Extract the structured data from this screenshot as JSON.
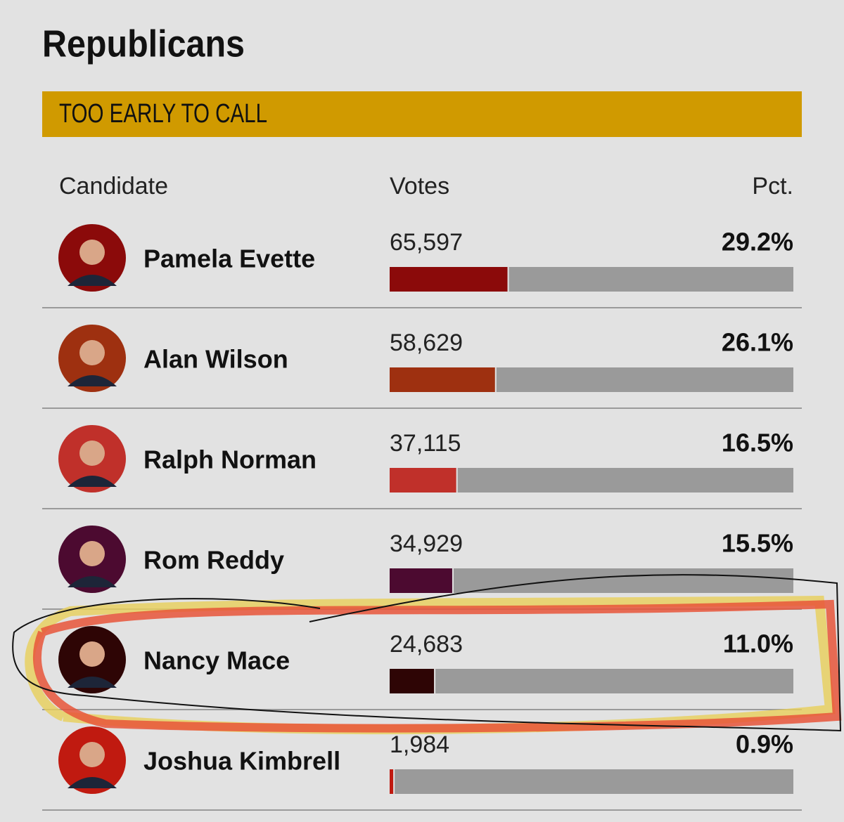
{
  "title": "Republicans",
  "status": "TOO EARLY TO CALL",
  "table": {
    "headers": [
      "Candidate",
      "Votes",
      "Pct."
    ],
    "rows": [
      {
        "name": "Pamela Evette",
        "votes": "65,597",
        "pct": {
          "value": 29.2,
          "label": "29.2%"
        },
        "color": "#8b0a0a"
      },
      {
        "name": "Alan Wilson",
        "votes": "58,629",
        "pct": {
          "value": 26.1,
          "label": "26.1%"
        },
        "color": "#9e3010"
      },
      {
        "name": "Ralph Norman",
        "votes": "37,115",
        "pct": {
          "value": 16.5,
          "label": "16.5%"
        },
        "color": "#c0302a"
      },
      {
        "name": "Rom Reddy",
        "votes": "34,929",
        "pct": {
          "value": 15.5,
          "label": "15.5%"
        },
        "color": "#4c0a30"
      },
      {
        "name": "Nancy Mace",
        "votes": "24,683",
        "pct": {
          "value": 11.0,
          "label": "11.0%"
        },
        "color": "#2e0505"
      },
      {
        "name": "Joshua Kimbrell",
        "votes": "1,984",
        "pct": {
          "value": 0.9,
          "label": "0.9%"
        },
        "color": "#c01a10"
      }
    ]
  }
}
